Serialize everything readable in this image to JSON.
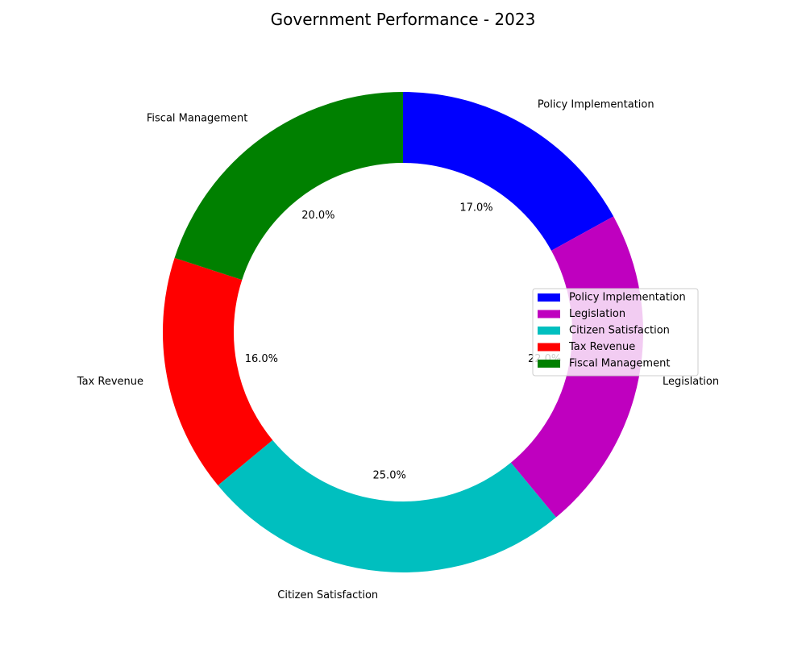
{
  "chart_data": {
    "type": "pie",
    "variant": "donut",
    "title": "Government Performance - 2023",
    "categories": [
      "Policy Implementation",
      "Legislation",
      "Citizen Satisfaction",
      "Tax Revenue",
      "Fiscal Management"
    ],
    "values": [
      17,
      22,
      25,
      16,
      20
    ],
    "percent_labels": [
      "17.0%",
      "22.0%",
      "25.0%",
      "16.0%",
      "20.0%"
    ],
    "colors": [
      "#0000ff",
      "#bf00bf",
      "#00bfbf",
      "#ff0000",
      "#008000"
    ],
    "start_angle_deg": 90,
    "direction": "clockwise",
    "legend": {
      "placement": "center-right",
      "entries": [
        "Policy Implementation",
        "Legislation",
        "Citizen Satisfaction",
        "Tax Revenue",
        "Fiscal Management"
      ]
    }
  }
}
